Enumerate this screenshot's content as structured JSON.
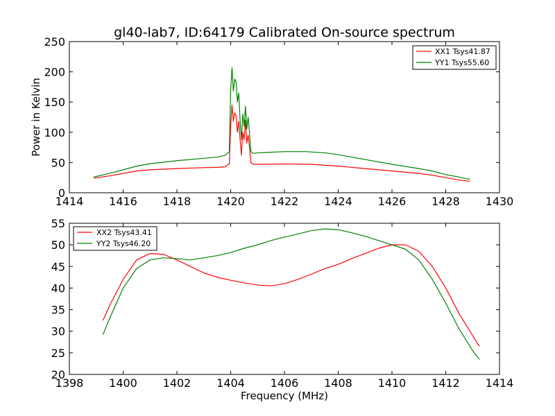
{
  "chart_data": [
    {
      "type": "line",
      "title": "gl40-lab7, ID:64179 Calibrated On-source spectrum",
      "xlabel": "",
      "ylabel": "Power in Kelvin",
      "xlim": [
        1414,
        1430
      ],
      "ylim": [
        0,
        250
      ],
      "xticks": [
        1414,
        1416,
        1418,
        1420,
        1422,
        1424,
        1426,
        1428,
        1430
      ],
      "yticks": [
        0,
        50,
        100,
        150,
        200,
        250
      ],
      "legend_position": "upper right",
      "grid": false,
      "series": [
        {
          "name": "XX1 Tsys41.87",
          "color": "#ff0000",
          "x": [
            1414.9,
            1415.5,
            1416.0,
            1416.5,
            1417.0,
            1418.0,
            1419.0,
            1419.5,
            1419.8,
            1419.95,
            1420.0,
            1420.05,
            1420.1,
            1420.15,
            1420.2,
            1420.25,
            1420.3,
            1420.35,
            1420.4,
            1420.45,
            1420.5,
            1420.55,
            1420.6,
            1420.65,
            1420.7,
            1420.75,
            1420.85,
            1421.0,
            1422.0,
            1423.0,
            1424.0,
            1425.0,
            1426.0,
            1427.0,
            1427.5,
            1428.0,
            1428.5,
            1428.9
          ],
          "y": [
            24,
            28,
            32,
            36,
            38,
            40,
            41.5,
            42,
            43,
            48,
            110,
            145,
            118,
            132,
            128,
            100,
            118,
            88,
            62,
            100,
            88,
            120,
            82,
            95,
            75,
            50,
            47,
            47,
            47.5,
            47,
            44,
            40,
            36,
            32,
            29,
            25,
            21,
            19
          ]
        },
        {
          "name": "YY1 Tsys55.60",
          "color": "#008000",
          "x": [
            1414.9,
            1415.5,
            1416.0,
            1416.5,
            1417.0,
            1418.0,
            1419.0,
            1419.5,
            1419.8,
            1419.95,
            1420.0,
            1420.05,
            1420.1,
            1420.15,
            1420.2,
            1420.25,
            1420.3,
            1420.35,
            1420.4,
            1420.45,
            1420.5,
            1420.55,
            1420.6,
            1420.65,
            1420.7,
            1420.75,
            1420.85,
            1421.0,
            1422.0,
            1422.8,
            1423.5,
            1424.0,
            1425.0,
            1426.0,
            1427.0,
            1427.5,
            1428.0,
            1428.5,
            1428.9
          ],
          "y": [
            26,
            32,
            38,
            44,
            48,
            53,
            57,
            59,
            62,
            68,
            170,
            207,
            168,
            188,
            184,
            150,
            165,
            120,
            88,
            130,
            110,
            143,
            105,
            125,
            100,
            68,
            65,
            66,
            68,
            68,
            66,
            63,
            55,
            47,
            40,
            36,
            30,
            26,
            22
          ]
        }
      ]
    },
    {
      "type": "line",
      "title": "",
      "xlabel": "Frequency (MHz)",
      "ylabel": "",
      "xlim": [
        1398,
        1414
      ],
      "ylim": [
        20,
        55
      ],
      "xticks": [
        1398,
        1400,
        1402,
        1404,
        1406,
        1408,
        1410,
        1412,
        1414
      ],
      "yticks": [
        20,
        25,
        30,
        35,
        40,
        45,
        50,
        55
      ],
      "legend_position": "upper left",
      "grid": false,
      "series": [
        {
          "name": "XX2 Tsys43.41",
          "color": "#ff0000",
          "x": [
            1399.25,
            1399.5,
            1400.0,
            1400.5,
            1401.0,
            1401.5,
            1402.0,
            1402.5,
            1403.0,
            1403.5,
            1404.0,
            1404.5,
            1405.0,
            1405.5,
            1406.0,
            1406.5,
            1407.0,
            1407.5,
            1408.0,
            1408.5,
            1409.0,
            1409.5,
            1410.0,
            1410.5,
            1411.0,
            1411.5,
            1412.0,
            1412.5,
            1413.0,
            1413.25
          ],
          "y": [
            32.5,
            36,
            42,
            46.5,
            48,
            47.8,
            46.5,
            45,
            43.5,
            42.5,
            41.8,
            41.2,
            40.7,
            40.5,
            41,
            42,
            43.2,
            44.5,
            45.5,
            46.8,
            48,
            49.2,
            50,
            50,
            48.5,
            45,
            40,
            34,
            29,
            26.5
          ]
        },
        {
          "name": "YY2 Tsys46.20",
          "color": "#008000",
          "x": [
            1399.25,
            1399.5,
            1400.0,
            1400.5,
            1401.0,
            1401.5,
            1402.0,
            1402.5,
            1403.0,
            1403.5,
            1404.0,
            1404.5,
            1405.0,
            1405.5,
            1406.0,
            1406.5,
            1407.0,
            1407.5,
            1408.0,
            1408.5,
            1409.0,
            1409.5,
            1410.0,
            1410.5,
            1411.0,
            1411.5,
            1412.0,
            1412.5,
            1413.0,
            1413.25
          ],
          "y": [
            29.2,
            33,
            40,
            44.5,
            46.5,
            47,
            46.8,
            46.5,
            47,
            47.5,
            48.2,
            49.2,
            50,
            51,
            51.8,
            52.5,
            53.3,
            53.7,
            53.5,
            52.8,
            52,
            51,
            50,
            49,
            46.5,
            42,
            36.5,
            30.5,
            25.5,
            23.5
          ]
        }
      ]
    }
  ]
}
